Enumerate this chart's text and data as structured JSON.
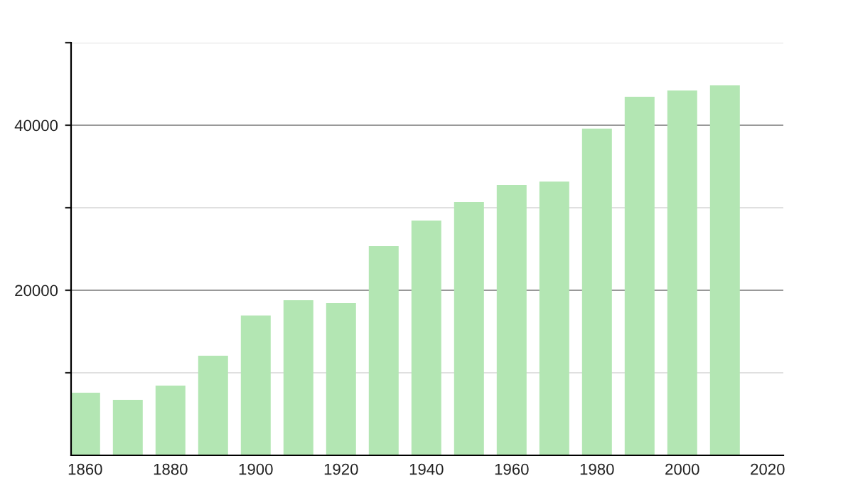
{
  "chart_data": {
    "type": "bar",
    "x": [
      1860,
      1870,
      1880,
      1890,
      1900,
      1910,
      1920,
      1930,
      1940,
      1950,
      1960,
      1970,
      1980,
      1990,
      2000,
      2010
    ],
    "values": [
      7590,
      6720,
      8450,
      12070,
      16950,
      18790,
      18450,
      25340,
      28450,
      30690,
      32760,
      33160,
      39600,
      43450,
      44200,
      44830
    ],
    "color": "#b3e6b3",
    "xlim": [
      1856.7,
      2023.7
    ],
    "xticks": [
      1860,
      1880,
      1900,
      1920,
      1940,
      1960,
      1980,
      2000,
      2020
    ],
    "ylim": [
      0,
      50000
    ],
    "yticks": [
      {
        "value": 10000,
        "label": null
      },
      20000,
      {
        "value": 30000,
        "label": null
      },
      40000,
      {
        "value": 50000,
        "label": null
      }
    ],
    "grid": "y",
    "legend": false
  }
}
